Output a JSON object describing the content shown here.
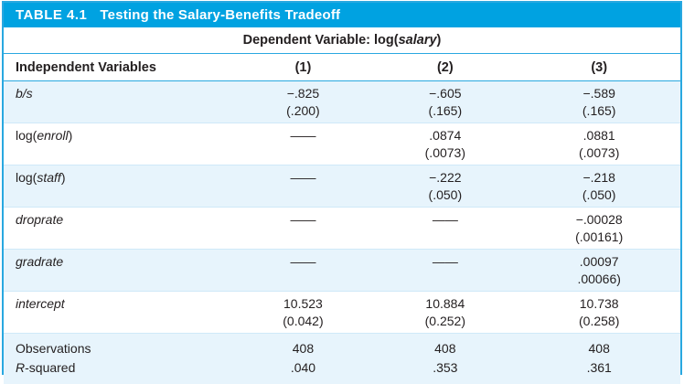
{
  "title": {
    "number": "TABLE 4.1",
    "text": "Testing the Salary-Benefits Tradeoff"
  },
  "dep_var": {
    "bold": "Dependent Variable: ",
    "pre": "log(",
    "it": "salary",
    "post": ")"
  },
  "header": {
    "label": "Independent Variables",
    "col1": "(1)",
    "col2": "(2)",
    "col3": "(3)"
  },
  "rows": [
    {
      "label_pre": "",
      "label_it": "b/s",
      "label_post": "",
      "cells": [
        {
          "v": "−.825",
          "se": "(.200)"
        },
        {
          "v": "−.605",
          "se": "(.165)"
        },
        {
          "v": "−.589",
          "se": "(.165)"
        }
      ]
    },
    {
      "label_pre": "log(",
      "label_it": "enroll",
      "label_post": ")",
      "cells": [
        {
          "v": "——",
          "se": ""
        },
        {
          "v": ".0874",
          "se": "(.0073)"
        },
        {
          "v": ".0881",
          "se": "(.0073)"
        }
      ]
    },
    {
      "label_pre": "log(",
      "label_it": "staff",
      "label_post": ")",
      "cells": [
        {
          "v": "——",
          "se": ""
        },
        {
          "v": "−.222",
          "se": "(.050)"
        },
        {
          "v": "−.218",
          "se": "(.050)"
        }
      ]
    },
    {
      "label_pre": "",
      "label_it": "droprate",
      "label_post": "",
      "cells": [
        {
          "v": "——",
          "se": ""
        },
        {
          "v": "——",
          "se": ""
        },
        {
          "v": "−.00028",
          "se": "(.00161)"
        }
      ]
    },
    {
      "label_pre": "",
      "label_it": "gradrate",
      "label_post": "",
      "cells": [
        {
          "v": "——",
          "se": ""
        },
        {
          "v": "——",
          "se": ""
        },
        {
          "v": ".00097",
          "se": ".00066)"
        }
      ]
    },
    {
      "label_pre": "",
      "label_it": "intercept",
      "label_post": "",
      "cells": [
        {
          "v": "10.523",
          "se": "(0.042)"
        },
        {
          "v": "10.884",
          "se": "(0.252)"
        },
        {
          "v": "10.738",
          "se": "(0.258)"
        }
      ]
    }
  ],
  "summary": {
    "observations": {
      "label": "Observations",
      "col1": "408",
      "col2": "408",
      "col3": "408"
    },
    "r_squared": {
      "label_it": "R",
      "label_rest": "-squared",
      "col1": ".040",
      "col2": ".353",
      "col3": ".361"
    }
  },
  "colors": {
    "accent_cyan": "#00a2e1",
    "rule_strong": "#29a8e0",
    "rule_faint": "#cfe9f8",
    "row_tint": "#e7f4fc",
    "text": "#231f20"
  }
}
